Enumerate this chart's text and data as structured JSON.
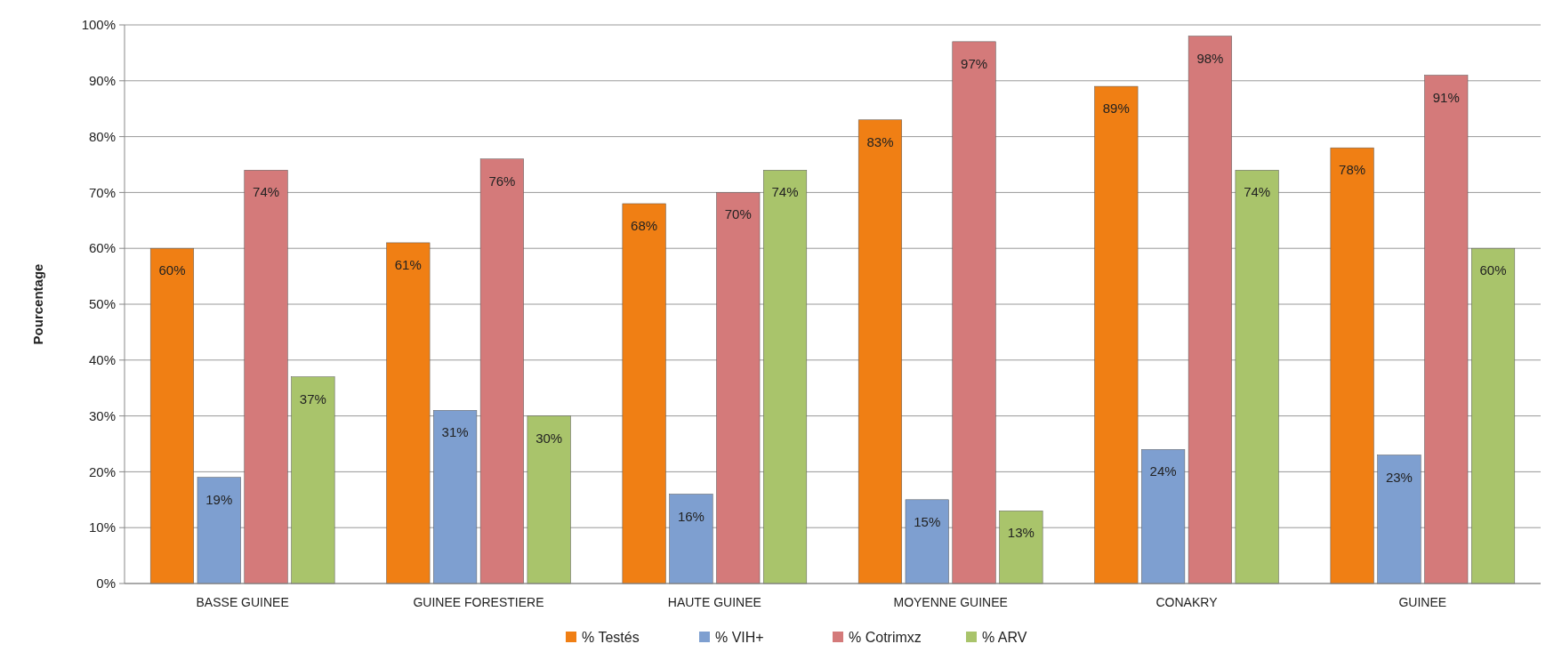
{
  "chart_data": {
    "type": "bar",
    "ylabel": "Pourcentage",
    "categories": [
      "BASSE GUINEE",
      "GUINEE FORESTIERE",
      "HAUTE GUINEE",
      "MOYENNE GUINEE",
      "CONAKRY",
      "GUINEE"
    ],
    "series": [
      {
        "name": "% Testés",
        "color": "#f07f14",
        "values": [
          60,
          61,
          68,
          83,
          89,
          78
        ],
        "value_labels": [
          "60%",
          "61%",
          "68%",
          "83%",
          "89%",
          "78%"
        ]
      },
      {
        "name": "% VIH+",
        "color": "#7e9fd0",
        "values": [
          19,
          31,
          16,
          15,
          24,
          23
        ],
        "value_labels": [
          "19%",
          "31%",
          "16%",
          "15%",
          "24%",
          "23%"
        ]
      },
      {
        "name": "% Cotrimxz",
        "color": "#d47a7a",
        "values": [
          74,
          76,
          70,
          97,
          98,
          91
        ],
        "value_labels": [
          "74%",
          "76%",
          "70%",
          "97%",
          "98%",
          "91%"
        ]
      },
      {
        "name": "% ARV",
        "color": "#a9c46b",
        "values": [
          37,
          30,
          74,
          13,
          74,
          60
        ],
        "value_labels": [
          "37%",
          "30%",
          "74%",
          "13%",
          "74%",
          "60%"
        ]
      }
    ],
    "ylim": [
      0,
      100
    ],
    "yticks": [
      {
        "value": 0,
        "label": "0%"
      },
      {
        "value": 10,
        "label": "10%"
      },
      {
        "value": 20,
        "label": "20%"
      },
      {
        "value": 30,
        "label": "30%"
      },
      {
        "value": 40,
        "label": "40%"
      },
      {
        "value": 50,
        "label": "50%"
      },
      {
        "value": 60,
        "label": "60%"
      },
      {
        "value": 70,
        "label": "70%"
      },
      {
        "value": 80,
        "label": "80%"
      },
      {
        "value": 90,
        "label": "90%"
      },
      {
        "value": 100,
        "label": "100%"
      }
    ],
    "grid": "y",
    "legend": "bottom"
  }
}
